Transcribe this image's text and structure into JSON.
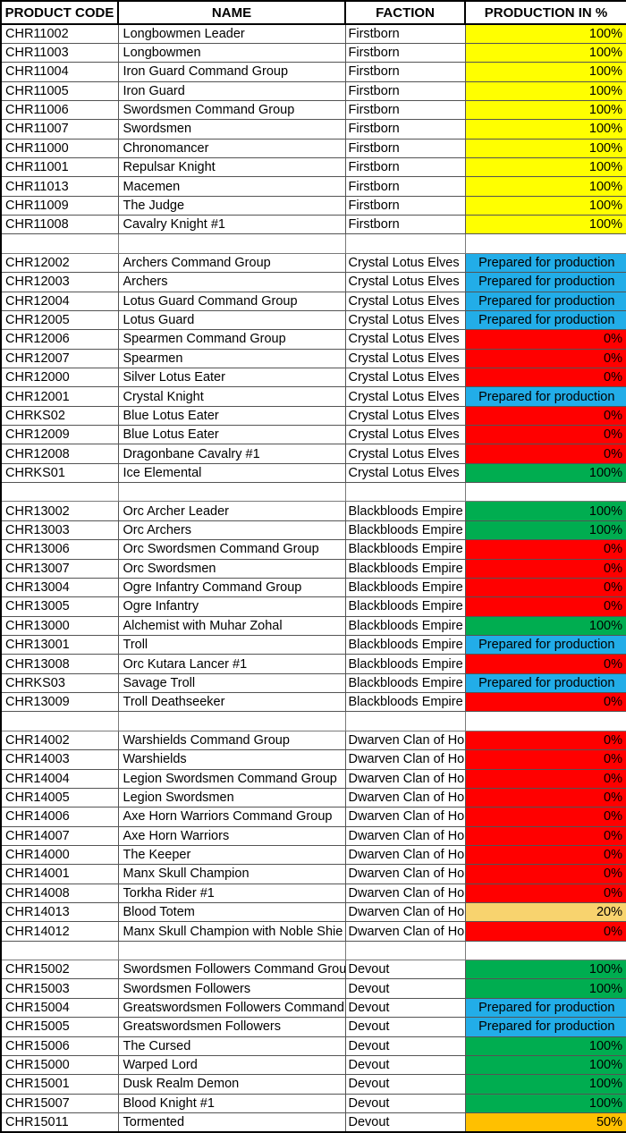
{
  "table": {
    "columns": [
      "PRODUCT CODE",
      "NAME",
      "FACTION",
      "PRODUCTION IN %"
    ],
    "status_colors": {
      "yellow": "#FFFF00",
      "red": "#FF0000",
      "green": "#00AD50",
      "blue": "#22ADE8",
      "gold": "#F8D36E",
      "orange": "#FFC000"
    },
    "rows": [
      {
        "code": "CHR11002",
        "name": "Longbowmen Leader",
        "faction": "Firstborn",
        "production": "100%",
        "status": "yellow"
      },
      {
        "code": "CHR11003",
        "name": "Longbowmen",
        "faction": "Firstborn",
        "production": "100%",
        "status": "yellow"
      },
      {
        "code": "CHR11004",
        "name": "Iron Guard Command Group",
        "faction": "Firstborn",
        "production": "100%",
        "status": "yellow"
      },
      {
        "code": "CHR11005",
        "name": "Iron Guard",
        "faction": "Firstborn",
        "production": "100%",
        "status": "yellow"
      },
      {
        "code": "CHR11006",
        "name": "Swordsmen Command Group",
        "faction": "Firstborn",
        "production": "100%",
        "status": "yellow"
      },
      {
        "code": "CHR11007",
        "name": "Swordsmen",
        "faction": "Firstborn",
        "production": "100%",
        "status": "yellow"
      },
      {
        "code": "CHR11000",
        "name": "Chronomancer",
        "faction": "Firstborn",
        "production": "100%",
        "status": "yellow"
      },
      {
        "code": "CHR11001",
        "name": "Repulsar Knight",
        "faction": "Firstborn",
        "production": "100%",
        "status": "yellow"
      },
      {
        "code": "CHR11013",
        "name": "Macemen",
        "faction": "Firstborn",
        "production": "100%",
        "status": "yellow"
      },
      {
        "code": "CHR11009",
        "name": "The Judge",
        "faction": "Firstborn",
        "production": "100%",
        "status": "yellow"
      },
      {
        "code": "CHR11008",
        "name": "Cavalry Knight #1",
        "faction": "Firstborn",
        "production": "100%",
        "status": "yellow"
      },
      {
        "spacer": true
      },
      {
        "code": "CHR12002",
        "name": "Archers Command Group",
        "faction": "Crystal Lotus Elves",
        "production": "Prepared for production",
        "status": "blue"
      },
      {
        "code": "CHR12003",
        "name": "Archers",
        "faction": "Crystal Lotus Elves",
        "production": "Prepared for production",
        "status": "blue"
      },
      {
        "code": "CHR12004",
        "name": "Lotus Guard Command Group",
        "faction": "Crystal Lotus Elves",
        "production": "Prepared for production",
        "status": "blue"
      },
      {
        "code": "CHR12005",
        "name": "Lotus Guard",
        "faction": "Crystal Lotus Elves",
        "production": "Prepared for production",
        "status": "blue"
      },
      {
        "code": "CHR12006",
        "name": "Spearmen Command Group",
        "faction": "Crystal Lotus Elves",
        "production": "0%",
        "status": "red"
      },
      {
        "code": "CHR12007",
        "name": "Spearmen",
        "faction": "Crystal Lotus Elves",
        "production": "0%",
        "status": "red"
      },
      {
        "code": "CHR12000",
        "name": "Silver Lotus Eater",
        "faction": "Crystal Lotus Elves",
        "production": "0%",
        "status": "red"
      },
      {
        "code": "CHR12001",
        "name": "Crystal Knight",
        "faction": "Crystal Lotus Elves",
        "production": "Prepared for production",
        "status": "blue"
      },
      {
        "code": "CHRKS02",
        "name": "Blue Lotus Eater",
        "faction": "Crystal Lotus Elves",
        "production": "0%",
        "status": "red"
      },
      {
        "code": "CHR12009",
        "name": "Blue Lotus Eater",
        "faction": "Crystal Lotus Elves",
        "production": "0%",
        "status": "red"
      },
      {
        "code": "CHR12008",
        "name": "Dragonbane Cavalry #1",
        "faction": "Crystal Lotus Elves",
        "production": "0%",
        "status": "red"
      },
      {
        "code": "CHRKS01",
        "name": "Ice Elemental",
        "faction": "Crystal Lotus Elves",
        "production": "100%",
        "status": "green"
      },
      {
        "spacer": true
      },
      {
        "code": "CHR13002",
        "name": "Orc Archer Leader",
        "faction": "Blackbloods Empire",
        "production": "100%",
        "status": "green"
      },
      {
        "code": "CHR13003",
        "name": "Orc Archers",
        "faction": "Blackbloods Empire",
        "production": "100%",
        "status": "green"
      },
      {
        "code": "CHR13006",
        "name": "Orc Swordsmen Command Group",
        "faction": "Blackbloods Empire",
        "production": "0%",
        "status": "red"
      },
      {
        "code": "CHR13007",
        "name": "Orc Swordsmen",
        "faction": "Blackbloods Empire",
        "production": "0%",
        "status": "red"
      },
      {
        "code": "CHR13004",
        "name": "Ogre Infantry Command Group",
        "faction": "Blackbloods Empire",
        "production": "0%",
        "status": "red"
      },
      {
        "code": "CHR13005",
        "name": "Ogre Infantry",
        "faction": "Blackbloods Empire",
        "production": "0%",
        "status": "red"
      },
      {
        "code": "CHR13000",
        "name": "Alchemist with Muhar Zohal",
        "faction": "Blackbloods Empire",
        "production": "100%",
        "status": "green"
      },
      {
        "code": "CHR13001",
        "name": "Troll",
        "faction": "Blackbloods Empire",
        "production": "Prepared for production",
        "status": "blue"
      },
      {
        "code": "CHR13008",
        "name": "Orc Kutara Lancer #1",
        "faction": "Blackbloods Empire",
        "production": "0%",
        "status": "red"
      },
      {
        "code": "CHRKS03",
        "name": "Savage Troll",
        "faction": "Blackbloods Empire",
        "production": "Prepared for production",
        "status": "blue"
      },
      {
        "code": "CHR13009",
        "name": "Troll Deathseeker",
        "faction": "Blackbloods Empire",
        "production": "0%",
        "status": "red"
      },
      {
        "spacer": true
      },
      {
        "code": "CHR14002",
        "name": "Warshields Command Group",
        "faction": "Dwarven Clan of Ho",
        "production": "0%",
        "status": "red"
      },
      {
        "code": "CHR14003",
        "name": "Warshields",
        "faction": "Dwarven Clan of Ho",
        "production": "0%",
        "status": "red"
      },
      {
        "code": "CHR14004",
        "name": "Legion Swordsmen Command Group",
        "faction": "Dwarven Clan of Ho",
        "production": "0%",
        "status": "red"
      },
      {
        "code": "CHR14005",
        "name": "Legion Swordsmen",
        "faction": "Dwarven Clan of Ho",
        "production": "0%",
        "status": "red"
      },
      {
        "code": "CHR14006",
        "name": "Axe Horn Warriors Command Group",
        "faction": "Dwarven Clan of Ho",
        "production": "0%",
        "status": "red"
      },
      {
        "code": "CHR14007",
        "name": "Axe Horn Warriors",
        "faction": "Dwarven Clan of Ho",
        "production": "0%",
        "status": "red"
      },
      {
        "code": "CHR14000",
        "name": "The Keeper",
        "faction": "Dwarven Clan of Ho",
        "production": "0%",
        "status": "red"
      },
      {
        "code": "CHR14001",
        "name": "Manx Skull Champion",
        "faction": "Dwarven Clan of Ho",
        "production": "0%",
        "status": "red"
      },
      {
        "code": "CHR14008",
        "name": "Torkha Rider #1",
        "faction": "Dwarven Clan of Ho",
        "production": "0%",
        "status": "red"
      },
      {
        "code": "CHR14013",
        "name": "Blood Totem",
        "faction": "Dwarven Clan of Ho",
        "production": "20%",
        "status": "gold"
      },
      {
        "code": "CHR14012",
        "name": "Manx Skull Champion with Noble Shie",
        "faction": "Dwarven Clan of Ho",
        "production": "0%",
        "status": "red"
      },
      {
        "spacer": true
      },
      {
        "code": "CHR15002",
        "name": "Swordsmen Followers Command Grou",
        "faction": "Devout",
        "production": "100%",
        "status": "green"
      },
      {
        "code": "CHR15003",
        "name": "Swordsmen Followers",
        "faction": "Devout",
        "production": "100%",
        "status": "green"
      },
      {
        "code": "CHR15004",
        "name": "Greatswordsmen Followers Command",
        "faction": "Devout",
        "production": "Prepared for production",
        "status": "blue"
      },
      {
        "code": "CHR15005",
        "name": "Greatswordsmen Followers",
        "faction": "Devout",
        "production": "Prepared for production",
        "status": "blue"
      },
      {
        "code": "CHR15006",
        "name": "The Cursed",
        "faction": "Devout",
        "production": "100%",
        "status": "green"
      },
      {
        "code": "CHR15000",
        "name": "Warped Lord",
        "faction": "Devout",
        "production": "100%",
        "status": "green"
      },
      {
        "code": "CHR15001",
        "name": "Dusk Realm Demon",
        "faction": "Devout",
        "production": "100%",
        "status": "green"
      },
      {
        "code": "CHR15007",
        "name": "Blood Knight #1",
        "faction": "Devout",
        "production": "100%",
        "status": "green"
      },
      {
        "code": "CHR15011",
        "name": "Tormented",
        "faction": "Devout",
        "production": "50%",
        "status": "orange"
      }
    ]
  }
}
